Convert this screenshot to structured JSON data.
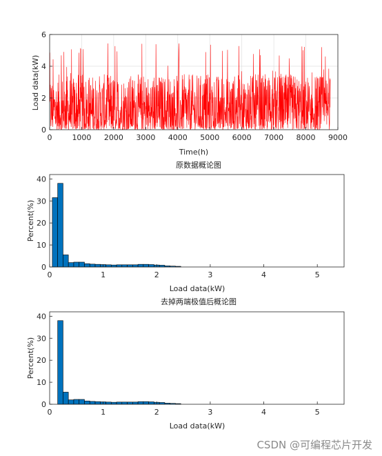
{
  "watermark": "CSDN @可编程芯片开发",
  "chart_data": [
    {
      "type": "line",
      "title": "",
      "xlabel": "Time(h)",
      "ylabel": "Load data(kW)",
      "xlim": [
        0,
        9000
      ],
      "ylim": [
        0,
        6
      ],
      "xticks": [
        0,
        1000,
        2000,
        3000,
        4000,
        5000,
        6000,
        7000,
        8000,
        9000
      ],
      "yticks": [
        0,
        2,
        4,
        6
      ],
      "grid": true,
      "series": [
        {
          "color": "#ff0000",
          "x_range": [
            1,
            8760
          ],
          "approx_max": 5.5,
          "typical_range": [
            0,
            3.5
          ]
        }
      ]
    },
    {
      "type": "bar",
      "title": "原数据概论图",
      "xlabel": "Load data(kW)",
      "ylabel": "Percent(%)",
      "xlim": [
        0,
        5.5
      ],
      "ylim": [
        0,
        42
      ],
      "xticks": [
        0,
        1,
        2,
        3,
        4,
        5
      ],
      "yticks": [
        0,
        10,
        20,
        30,
        40
      ],
      "color": "#0072bd",
      "bin_width": 0.1,
      "bin_centers": [
        0.1,
        0.2,
        0.3,
        0.4,
        0.5,
        0.6,
        0.7,
        0.8,
        0.9,
        1.0,
        1.1,
        1.2,
        1.3,
        1.4,
        1.5,
        1.6,
        1.7,
        1.8,
        1.9,
        2.0,
        2.1,
        2.2,
        2.3,
        2.4
      ],
      "values": [
        31.5,
        38,
        5.5,
        2,
        2.2,
        2.2,
        1.5,
        1.3,
        1.2,
        1.1,
        1.0,
        0.9,
        1.0,
        1.0,
        1.0,
        1.0,
        1.2,
        1.2,
        1.1,
        0.9,
        0.8,
        0.5,
        0.4,
        0.3
      ]
    },
    {
      "type": "bar",
      "title": "去掉两端极值后概论图",
      "xlabel": "Load data(kW)",
      "ylabel": "Percent(%)",
      "xlim": [
        0,
        5.5
      ],
      "ylim": [
        0,
        42
      ],
      "xticks": [
        0,
        1,
        2,
        3,
        4,
        5
      ],
      "yticks": [
        0,
        10,
        20,
        30,
        40
      ],
      "color": "#0072bd",
      "bin_width": 0.1,
      "bin_centers": [
        0.2,
        0.3,
        0.4,
        0.5,
        0.6,
        0.7,
        0.8,
        0.9,
        1.0,
        1.1,
        1.2,
        1.3,
        1.4,
        1.5,
        1.6,
        1.7,
        1.8,
        1.9,
        2.0,
        2.1,
        2.2,
        2.3,
        2.4
      ],
      "values": [
        38,
        5.5,
        2,
        2.2,
        2.2,
        1.5,
        1.3,
        1.2,
        1.1,
        1.0,
        0.9,
        1.0,
        1.0,
        1.0,
        1.0,
        1.2,
        1.2,
        1.1,
        0.9,
        0.8,
        0.5,
        0.4,
        0.3
      ]
    }
  ]
}
